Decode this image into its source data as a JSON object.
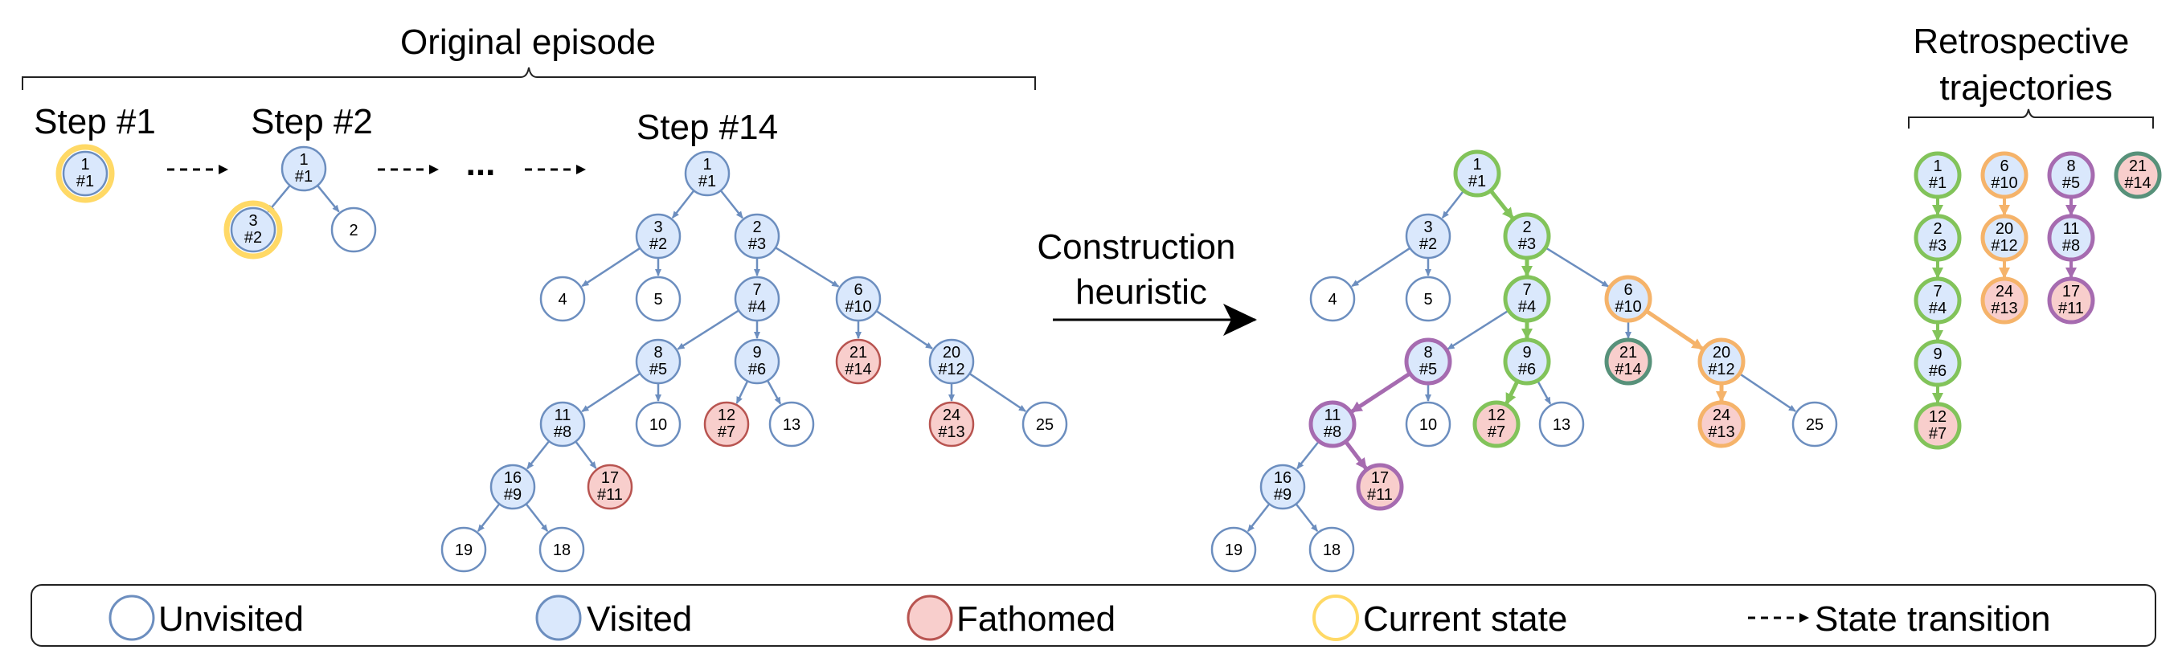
{
  "title_original": "Original episode",
  "title_retro": "Retrospective trajectories",
  "steps": {
    "step1": "Step #1",
    "step2": "Step #2",
    "step14": "Step #14",
    "dots": "..."
  },
  "construction_label": "Construction heuristic",
  "legend": {
    "unvisited": "Unvisited",
    "visited": "Visited",
    "fathomed": "Fathomed",
    "current": "Current state",
    "transition": "State transition"
  },
  "colors": {
    "edge": "#6c8ebf",
    "unvisited_fill": "#ffffff",
    "visited_fill": "#dae8fc",
    "fathomed_fill": "#f8cecc",
    "fathomed_stroke": "#b85450",
    "current_ring": "#ffd966",
    "traj_green": "#82c35a",
    "traj_orange": "#f5b36a",
    "traj_purple": "#a66bb0",
    "traj_teal": "#57917a"
  },
  "step1_node": {
    "id": "1",
    "order": "#1",
    "state": "visited",
    "current": true
  },
  "step2_nodes": [
    {
      "id": "1",
      "order": "#1",
      "state": "visited"
    },
    {
      "id": "3",
      "order": "#2",
      "state": "visited",
      "current": true
    },
    {
      "id": "2",
      "order": "",
      "state": "unvisited"
    }
  ],
  "tree_nodes": [
    {
      "key": "n1",
      "id": "1",
      "order": "#1",
      "state": "visited"
    },
    {
      "key": "n3",
      "id": "3",
      "order": "#2",
      "state": "visited"
    },
    {
      "key": "n2",
      "id": "2",
      "order": "#3",
      "state": "visited"
    },
    {
      "key": "n4",
      "id": "4",
      "order": "",
      "state": "unvisited"
    },
    {
      "key": "n5",
      "id": "5",
      "order": "",
      "state": "unvisited"
    },
    {
      "key": "n7",
      "id": "7",
      "order": "#4",
      "state": "visited"
    },
    {
      "key": "n6",
      "id": "6",
      "order": "#10",
      "state": "visited"
    },
    {
      "key": "n8",
      "id": "8",
      "order": "#5",
      "state": "visited"
    },
    {
      "key": "n9",
      "id": "9",
      "order": "#6",
      "state": "visited"
    },
    {
      "key": "n21",
      "id": "21",
      "order": "#14",
      "state": "fathomed"
    },
    {
      "key": "n20",
      "id": "20",
      "order": "#12",
      "state": "visited"
    },
    {
      "key": "n11",
      "id": "11",
      "order": "#8",
      "state": "visited"
    },
    {
      "key": "n10",
      "id": "10",
      "order": "",
      "state": "unvisited"
    },
    {
      "key": "n12",
      "id": "12",
      "order": "#7",
      "state": "fathomed"
    },
    {
      "key": "n13",
      "id": "13",
      "order": "",
      "state": "unvisited"
    },
    {
      "key": "n24",
      "id": "24",
      "order": "#13",
      "state": "fathomed"
    },
    {
      "key": "n25",
      "id": "25",
      "order": "",
      "state": "unvisited"
    },
    {
      "key": "n16",
      "id": "16",
      "order": "#9",
      "state": "visited"
    },
    {
      "key": "n17",
      "id": "17",
      "order": "#11",
      "state": "fathomed"
    },
    {
      "key": "n19",
      "id": "19",
      "order": "",
      "state": "unvisited"
    },
    {
      "key": "n18",
      "id": "18",
      "order": "",
      "state": "unvisited"
    }
  ],
  "tree_edges": [
    [
      "n1",
      "n3"
    ],
    [
      "n1",
      "n2"
    ],
    [
      "n3",
      "n4"
    ],
    [
      "n3",
      "n5"
    ],
    [
      "n2",
      "n7"
    ],
    [
      "n2",
      "n6"
    ],
    [
      "n7",
      "n8"
    ],
    [
      "n7",
      "n9"
    ],
    [
      "n6",
      "n21"
    ],
    [
      "n6",
      "n20"
    ],
    [
      "n8",
      "n11"
    ],
    [
      "n8",
      "n10"
    ],
    [
      "n9",
      "n12"
    ],
    [
      "n9",
      "n13"
    ],
    [
      "n20",
      "n24"
    ],
    [
      "n20",
      "n25"
    ],
    [
      "n11",
      "n16"
    ],
    [
      "n11",
      "n17"
    ],
    [
      "n16",
      "n19"
    ],
    [
      "n16",
      "n18"
    ]
  ],
  "trajectories": [
    {
      "color": "green",
      "nodes": [
        [
          "1",
          "#1"
        ],
        [
          "2",
          "#3"
        ],
        [
          "7",
          "#4"
        ],
        [
          "9",
          "#6"
        ],
        [
          "12",
          "#7"
        ]
      ]
    },
    {
      "color": "orange",
      "nodes": [
        [
          "6",
          "#10"
        ],
        [
          "20",
          "#12"
        ],
        [
          "24",
          "#13"
        ]
      ]
    },
    {
      "color": "purple",
      "nodes": [
        [
          "8",
          "#5"
        ],
        [
          "11",
          "#8"
        ],
        [
          "17",
          "#11"
        ]
      ]
    },
    {
      "color": "teal",
      "nodes": [
        [
          "21",
          "#14"
        ]
      ]
    }
  ]
}
